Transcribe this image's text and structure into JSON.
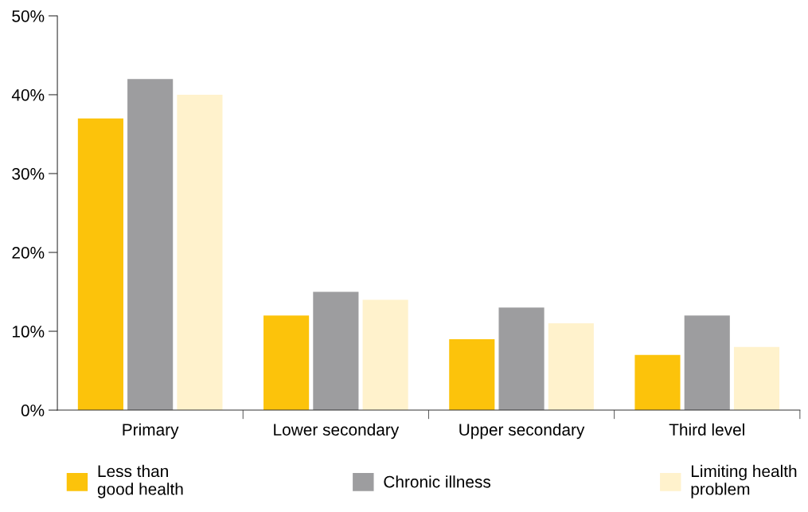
{
  "chart_data": {
    "type": "bar",
    "categories": [
      "Primary",
      "Lower secondary",
      "Upper secondary",
      "Third level"
    ],
    "series": [
      {
        "name": "Less than\ngood health",
        "color": "#fcc30b",
        "values": [
          37,
          12,
          9,
          7
        ]
      },
      {
        "name": "Chronic illness",
        "color": "#9d9d9f",
        "values": [
          42,
          15,
          13,
          12
        ]
      },
      {
        "name": "Limiting health\nproblem",
        "color": "#fff2cc",
        "values": [
          40,
          14,
          11,
          8
        ]
      }
    ],
    "ylim": [
      0,
      50
    ],
    "yticks": [
      {
        "value": 0,
        "label": "0%"
      },
      {
        "value": 10,
        "label": "10%"
      },
      {
        "value": 20,
        "label": "20%"
      },
      {
        "value": 30,
        "label": "30%"
      },
      {
        "value": 40,
        "label": "40%"
      },
      {
        "value": 50,
        "label": "50%"
      }
    ],
    "grid": false,
    "legend": "bottom"
  }
}
